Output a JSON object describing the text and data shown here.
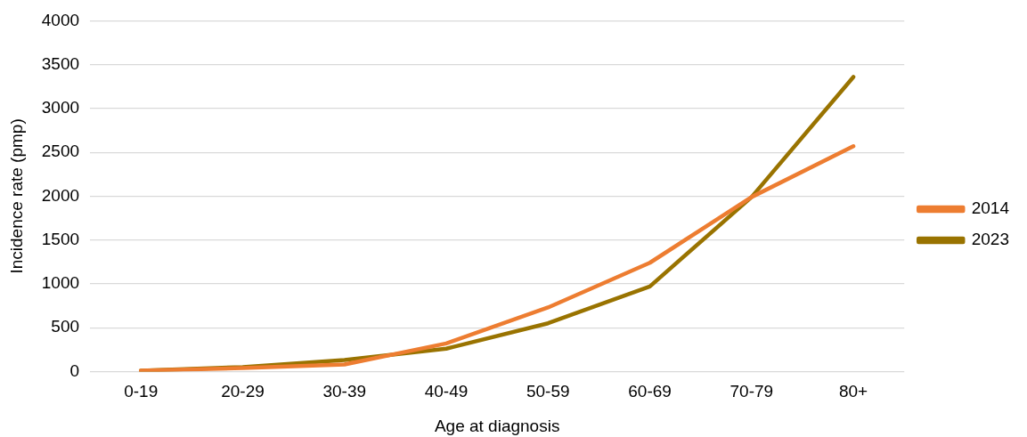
{
  "chart_data": {
    "type": "line",
    "xlabel": "Age at diagnosis",
    "ylabel": "Incidence rate (pmp)",
    "categories": [
      "0-19",
      "20-29",
      "30-39",
      "40-49",
      "50-59",
      "60-69",
      "70-79",
      "80+"
    ],
    "series": [
      {
        "name": "2014",
        "color": "#ed7d31",
        "values": [
          10,
          40,
          80,
          320,
          730,
          1240,
          1990,
          2570
        ]
      },
      {
        "name": "2023",
        "color": "#997300",
        "values": [
          10,
          50,
          130,
          260,
          550,
          970,
          1990,
          3360
        ]
      }
    ],
    "ylim": [
      0,
      4000
    ],
    "yticks": [
      0,
      500,
      1000,
      1500,
      2000,
      2500,
      3000,
      3500,
      4000
    ],
    "grid": "y",
    "legend": "right",
    "marker": "none",
    "line_style": "solid"
  }
}
